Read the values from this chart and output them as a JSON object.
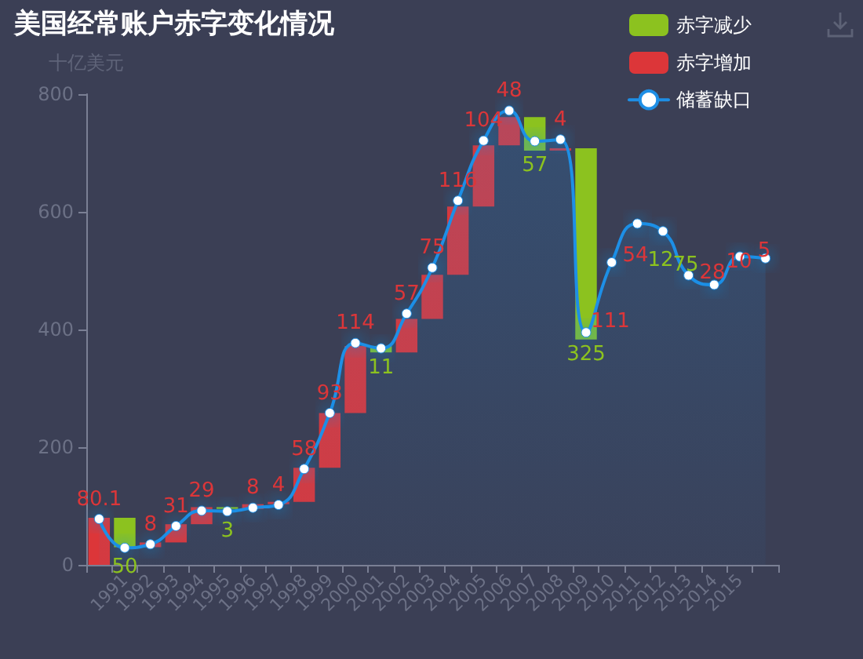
{
  "chart_data": {
    "type": "bar",
    "title": "美国经常账户赤字变化情况",
    "ylabel": "十亿美元",
    "categories": [
      null,
      "1991",
      "1992",
      "1993",
      "1994",
      "1995",
      "1996",
      "1997",
      "1998",
      "1999",
      "2000",
      "2001",
      "2002",
      "2003",
      "2004",
      "2005",
      "2006",
      "2007",
      "2008",
      "2009",
      "2010",
      "2011",
      "2012",
      "2013",
      "2014",
      "2015",
      null
    ],
    "series": [
      {
        "name": "赤字减少",
        "color": "#8cc21f",
        "values": [
          null,
          50,
          null,
          null,
          null,
          3,
          null,
          null,
          null,
          null,
          null,
          11,
          null,
          null,
          null,
          null,
          null,
          57,
          null,
          325,
          null,
          null,
          null,
          null,
          null,
          null,
          null
        ],
        "base": [
          null,
          30.1,
          null,
          null,
          null,
          95.1,
          null,
          null,
          null,
          null,
          null,
          361.1,
          null,
          null,
          null,
          null,
          null,
          704.1,
          null,
          383.1,
          null,
          null,
          null,
          null,
          null,
          null,
          null
        ],
        "value_labels": [
          null,
          "50",
          null,
          null,
          null,
          "3",
          null,
          null,
          null,
          null,
          null,
          "11",
          null,
          null,
          null,
          null,
          null,
          "57",
          null,
          "325",
          null,
          null,
          null,
          null,
          null,
          null,
          null
        ]
      },
      {
        "name": "赤字增加",
        "color": "#dc3639",
        "values": [
          80.1,
          null,
          8,
          31,
          29,
          null,
          8,
          4,
          58,
          93,
          114,
          null,
          57,
          75,
          116,
          104,
          48,
          null,
          4,
          null,
          null,
          null,
          null,
          null,
          null,
          null,
          null
        ],
        "base": [
          0,
          null,
          30.1,
          38.1,
          69.1,
          null,
          95.1,
          103.1,
          107.1,
          165.1,
          258.1,
          null,
          361.1,
          418.1,
          493.1,
          609.1,
          713.1,
          null,
          704.1,
          null,
          null,
          null,
          null,
          null,
          null,
          null,
          null
        ],
        "value_labels": [
          "80.1",
          null,
          "8",
          "31",
          "29",
          null,
          "8",
          "4",
          "58",
          "93",
          "114",
          null,
          "57",
          "75",
          "116",
          "104",
          "48",
          null,
          "4",
          null,
          null,
          null,
          null,
          null,
          null,
          null,
          null
        ]
      },
      {
        "name": "储蓄缺口",
        "type": "area",
        "color": "#1e8fe6",
        "values": [
          78,
          29,
          35,
          66,
          92,
          91,
          97,
          102,
          163,
          258,
          377,
          368,
          427,
          505,
          619,
          721,
          772,
          720,
          723,
          395,
          514,
          580,
          567,
          492,
          476,
          524,
          521
        ]
      }
    ],
    "ylim": [
      0,
      800
    ],
    "yticks": [
      0,
      200,
      400,
      600,
      800
    ],
    "grid": false,
    "legend": "top right",
    "marker": "circle",
    "annotations": [
      "111",
      "54",
      "12",
      "75",
      "28",
      "10",
      "5"
    ]
  }
}
